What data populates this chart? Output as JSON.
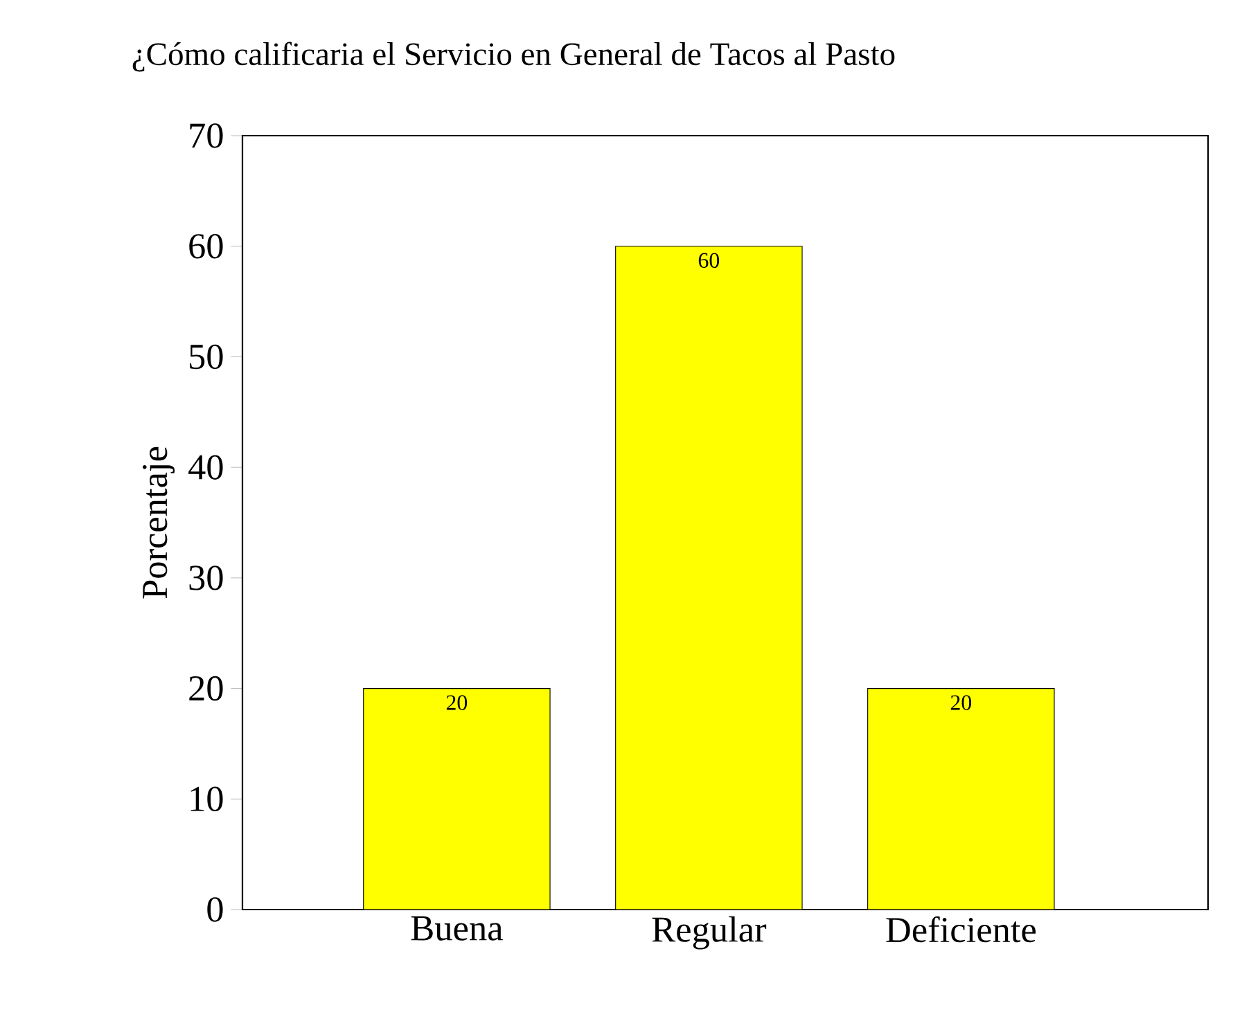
{
  "chart_data": {
    "type": "bar",
    "title": "¿Cómo calificaria el Servicio en General de Tacos al Pasto",
    "ylabel": "Porcentaje",
    "categories": [
      "Buena",
      "Regular",
      "Deficiente"
    ],
    "values": [
      20,
      60,
      20
    ],
    "color": "#ffff00",
    "ylim": [
      0,
      70
    ],
    "yticks": [
      0,
      10,
      20,
      30,
      40,
      50,
      60,
      70
    ],
    "data_labels": true,
    "grid": false
  }
}
